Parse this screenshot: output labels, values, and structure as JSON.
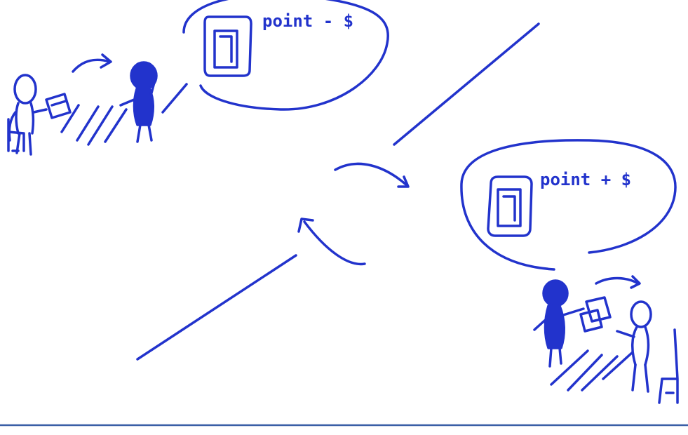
{
  "ink_color": "#2233cc",
  "footer_rule_color": "#3a5fa6",
  "left_bubble": {
    "label": "point - $",
    "icon": "card-icon"
  },
  "right_bubble": {
    "label": "point + $",
    "icon": "card-icon"
  }
}
